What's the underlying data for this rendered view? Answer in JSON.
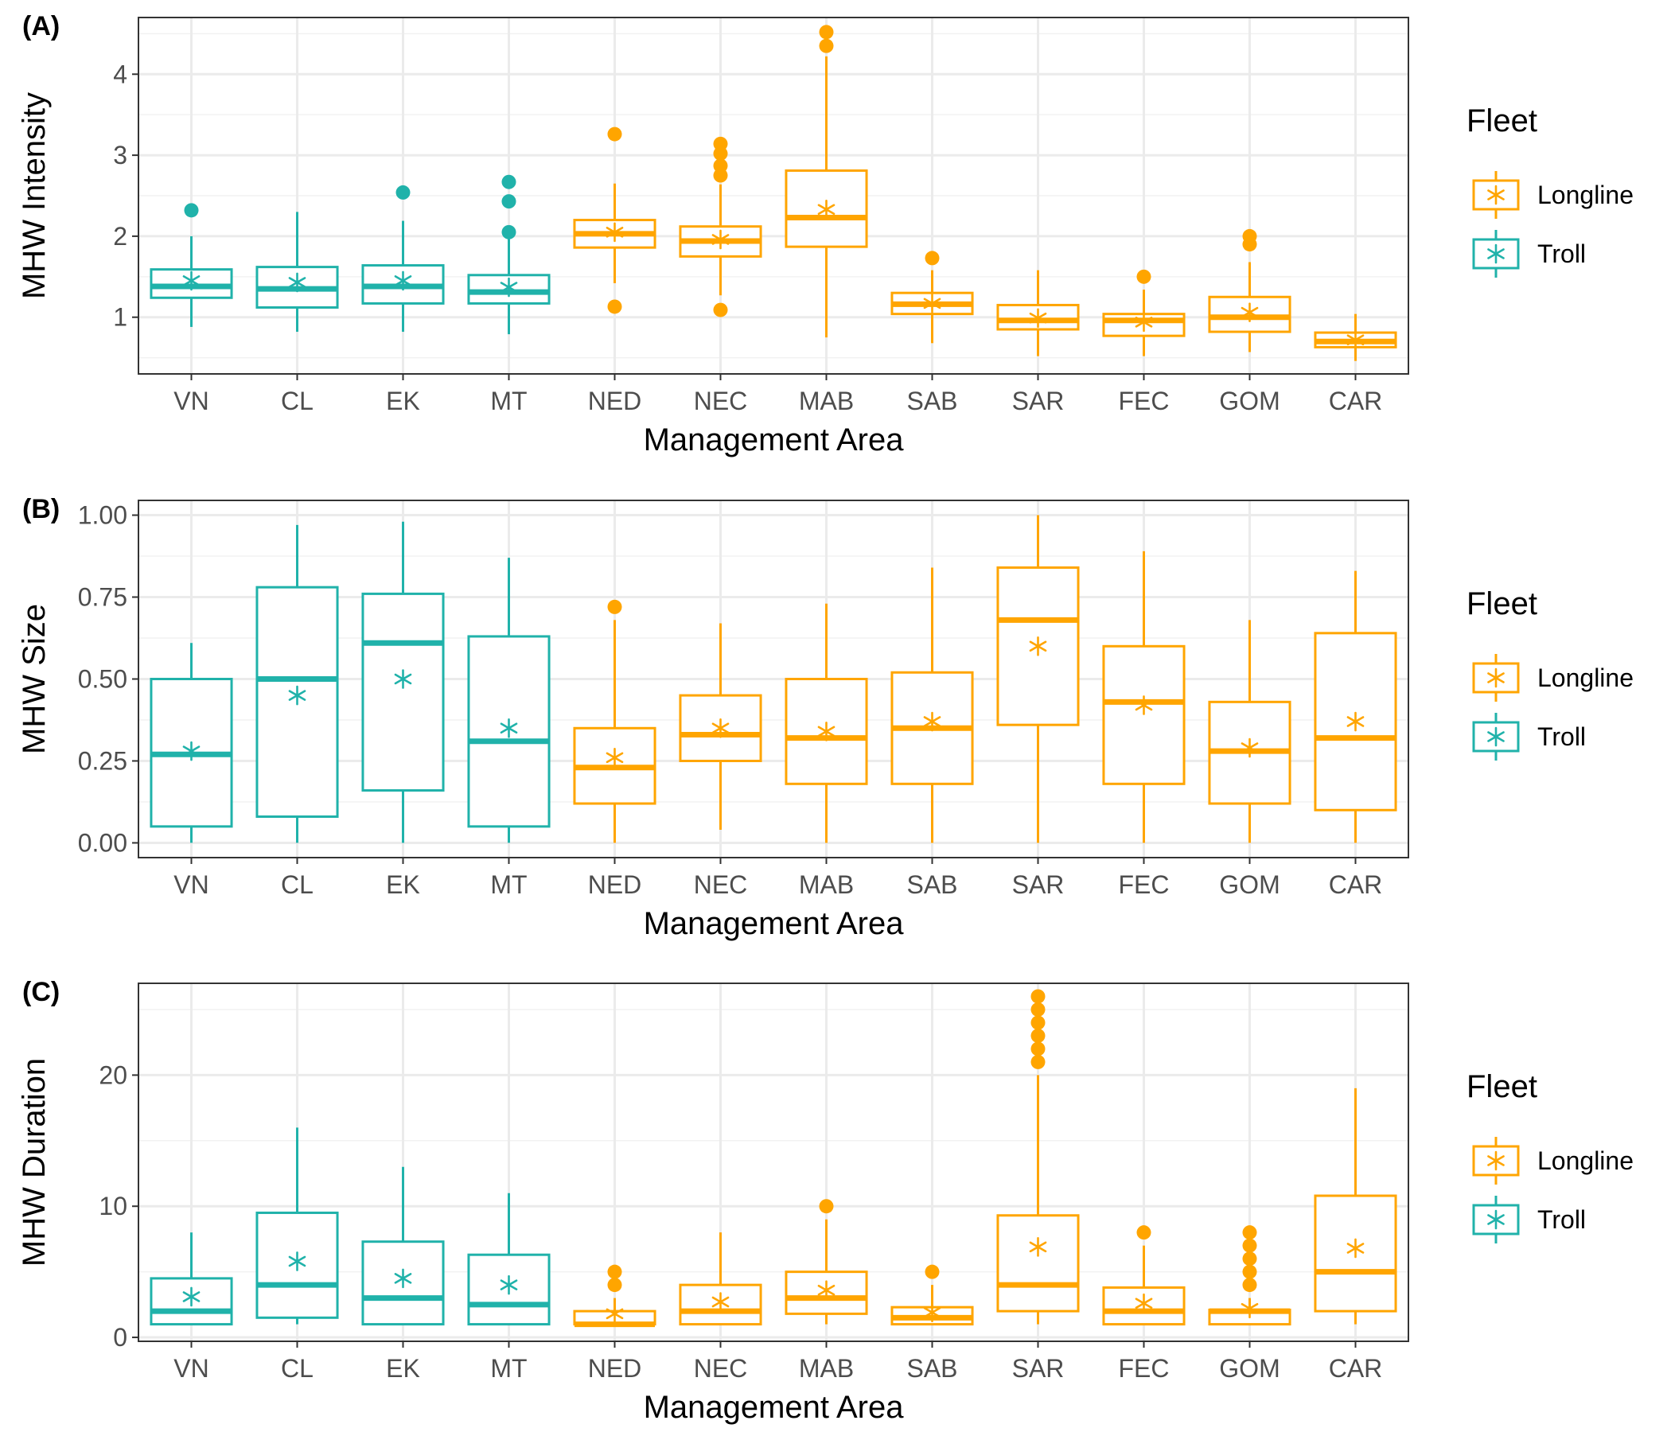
{
  "legend": {
    "title": "Fleet",
    "entries": [
      {
        "label": "Longline",
        "color": "#FFA500"
      },
      {
        "label": "Troll",
        "color": "#20B2AA"
      }
    ]
  },
  "colors": {
    "Longline": "#FFA500",
    "Troll": "#20B2AA",
    "grid_major": "#ebebeb",
    "panel_border": "#333333"
  },
  "chart_data": [
    {
      "panel": "(A)",
      "type": "boxplot",
      "xlabel": "Management Area",
      "ylabel": "MHW Intensity",
      "ylim": [
        0.3,
        4.7
      ],
      "yticks": [
        1,
        2,
        3,
        4
      ],
      "ytick_labels": [
        "1",
        "2",
        "3",
        "4"
      ],
      "grid": true,
      "legend_position": "right",
      "groups": [
        {
          "area": "VN",
          "fleet": "Troll",
          "whisker_low": 0.88,
          "q1": 1.24,
          "median": 1.38,
          "q3": 1.59,
          "whisker_high": 2.0,
          "mean": 1.45,
          "outliers": [
            2.32
          ]
        },
        {
          "area": "CL",
          "fleet": "Troll",
          "whisker_low": 0.82,
          "q1": 1.12,
          "median": 1.35,
          "q3": 1.62,
          "whisker_high": 2.3,
          "mean": 1.43,
          "outliers": []
        },
        {
          "area": "EK",
          "fleet": "Troll",
          "whisker_low": 0.82,
          "q1": 1.17,
          "median": 1.38,
          "q3": 1.64,
          "whisker_high": 2.19,
          "mean": 1.45,
          "outliers": [
            2.54
          ]
        },
        {
          "area": "MT",
          "fleet": "Troll",
          "whisker_low": 0.79,
          "q1": 1.17,
          "median": 1.31,
          "q3": 1.52,
          "whisker_high": 1.99,
          "mean": 1.37,
          "outliers": [
            2.05,
            2.43,
            2.67
          ]
        },
        {
          "area": "NED",
          "fleet": "Longline",
          "whisker_low": 1.42,
          "q1": 1.86,
          "median": 2.03,
          "q3": 2.2,
          "whisker_high": 2.65,
          "mean": 2.05,
          "outliers": [
            1.13,
            3.26
          ]
        },
        {
          "area": "NEC",
          "fleet": "Longline",
          "whisker_low": 1.27,
          "q1": 1.75,
          "median": 1.94,
          "q3": 2.12,
          "whisker_high": 2.64,
          "mean": 1.96,
          "outliers": [
            1.09,
            2.75,
            2.87,
            3.02,
            3.14
          ]
        },
        {
          "area": "MAB",
          "fleet": "Longline",
          "whisker_low": 0.75,
          "q1": 1.87,
          "median": 2.23,
          "q3": 2.81,
          "whisker_high": 4.22,
          "mean": 2.33,
          "outliers": [
            4.35,
            4.52
          ]
        },
        {
          "area": "SAB",
          "fleet": "Longline",
          "whisker_low": 0.68,
          "q1": 1.04,
          "median": 1.16,
          "q3": 1.3,
          "whisker_high": 1.58,
          "mean": 1.17,
          "outliers": [
            1.73
          ]
        },
        {
          "area": "SAR",
          "fleet": "Longline",
          "whisker_low": 0.52,
          "q1": 0.85,
          "median": 0.96,
          "q3": 1.15,
          "whisker_high": 1.58,
          "mean": 0.99,
          "outliers": []
        },
        {
          "area": "FEC",
          "fleet": "Longline",
          "whisker_low": 0.52,
          "q1": 0.77,
          "median": 0.96,
          "q3": 1.04,
          "whisker_high": 1.34,
          "mean": 0.94,
          "outliers": [
            1.5
          ]
        },
        {
          "area": "GOM",
          "fleet": "Longline",
          "whisker_low": 0.57,
          "q1": 0.82,
          "median": 1.0,
          "q3": 1.25,
          "whisker_high": 1.68,
          "mean": 1.06,
          "outliers": [
            1.9,
            2.0
          ]
        },
        {
          "area": "CAR",
          "fleet": "Longline",
          "whisker_low": 0.46,
          "q1": 0.63,
          "median": 0.7,
          "q3": 0.81,
          "whisker_high": 1.04,
          "mean": 0.72,
          "outliers": []
        }
      ]
    },
    {
      "panel": "(B)",
      "type": "boxplot",
      "xlabel": "Management Area",
      "ylabel": "MHW Size",
      "ylim": [
        -0.045,
        1.045
      ],
      "yticks": [
        0,
        0.25,
        0.5,
        0.75,
        1.0
      ],
      "ytick_labels": [
        "0.00",
        "0.25",
        "0.50",
        "0.75",
        "1.00"
      ],
      "grid": true,
      "legend_position": "right",
      "groups": [
        {
          "area": "VN",
          "fleet": "Troll",
          "whisker_low": 0.0,
          "q1": 0.05,
          "median": 0.27,
          "q3": 0.5,
          "whisker_high": 0.61,
          "mean": 0.28,
          "outliers": []
        },
        {
          "area": "CL",
          "fleet": "Troll",
          "whisker_low": 0.0,
          "q1": 0.08,
          "median": 0.5,
          "q3": 0.78,
          "whisker_high": 0.97,
          "mean": 0.45,
          "outliers": []
        },
        {
          "area": "EK",
          "fleet": "Troll",
          "whisker_low": 0.0,
          "q1": 0.16,
          "median": 0.61,
          "q3": 0.76,
          "whisker_high": 0.98,
          "mean": 0.5,
          "outliers": []
        },
        {
          "area": "MT",
          "fleet": "Troll",
          "whisker_low": 0.0,
          "q1": 0.05,
          "median": 0.31,
          "q3": 0.63,
          "whisker_high": 0.87,
          "mean": 0.35,
          "outliers": []
        },
        {
          "area": "NED",
          "fleet": "Longline",
          "whisker_low": 0.0,
          "q1": 0.12,
          "median": 0.23,
          "q3": 0.35,
          "whisker_high": 0.68,
          "mean": 0.26,
          "outliers": [
            0.72
          ]
        },
        {
          "area": "NEC",
          "fleet": "Longline",
          "whisker_low": 0.04,
          "q1": 0.25,
          "median": 0.33,
          "q3": 0.45,
          "whisker_high": 0.67,
          "mean": 0.35,
          "outliers": []
        },
        {
          "area": "MAB",
          "fleet": "Longline",
          "whisker_low": 0.0,
          "q1": 0.18,
          "median": 0.32,
          "q3": 0.5,
          "whisker_high": 0.73,
          "mean": 0.34,
          "outliers": []
        },
        {
          "area": "SAB",
          "fleet": "Longline",
          "whisker_low": 0.0,
          "q1": 0.18,
          "median": 0.35,
          "q3": 0.52,
          "whisker_high": 0.84,
          "mean": 0.37,
          "outliers": []
        },
        {
          "area": "SAR",
          "fleet": "Longline",
          "whisker_low": 0.0,
          "q1": 0.36,
          "median": 0.68,
          "q3": 0.84,
          "whisker_high": 1.0,
          "mean": 0.6,
          "outliers": []
        },
        {
          "area": "FEC",
          "fleet": "Longline",
          "whisker_low": 0.0,
          "q1": 0.18,
          "median": 0.43,
          "q3": 0.6,
          "whisker_high": 0.89,
          "mean": 0.42,
          "outliers": []
        },
        {
          "area": "GOM",
          "fleet": "Longline",
          "whisker_low": 0.0,
          "q1": 0.12,
          "median": 0.28,
          "q3": 0.43,
          "whisker_high": 0.68,
          "mean": 0.29,
          "outliers": []
        },
        {
          "area": "CAR",
          "fleet": "Longline",
          "whisker_low": 0.0,
          "q1": 0.1,
          "median": 0.32,
          "q3": 0.64,
          "whisker_high": 0.83,
          "mean": 0.37,
          "outliers": []
        }
      ]
    },
    {
      "panel": "(C)",
      "type": "boxplot",
      "xlabel": "Management Area",
      "ylabel": "MHW Duration",
      "ylim": [
        -0.3,
        27
      ],
      "yticks": [
        0,
        10,
        20
      ],
      "ytick_labels": [
        "0",
        "10",
        "20"
      ],
      "grid": true,
      "legend_position": "right",
      "groups": [
        {
          "area": "VN",
          "fleet": "Troll",
          "whisker_low": 1,
          "q1": 1,
          "median": 2,
          "q3": 4.5,
          "whisker_high": 8,
          "mean": 3.1,
          "outliers": []
        },
        {
          "area": "CL",
          "fleet": "Troll",
          "whisker_low": 1,
          "q1": 1.5,
          "median": 4,
          "q3": 9.5,
          "whisker_high": 16,
          "mean": 5.8,
          "outliers": []
        },
        {
          "area": "EK",
          "fleet": "Troll",
          "whisker_low": 1,
          "q1": 1,
          "median": 3,
          "q3": 7.3,
          "whisker_high": 13,
          "mean": 4.5,
          "outliers": []
        },
        {
          "area": "MT",
          "fleet": "Troll",
          "whisker_low": 1,
          "q1": 1,
          "median": 2.5,
          "q3": 6.3,
          "whisker_high": 11,
          "mean": 4.0,
          "outliers": []
        },
        {
          "area": "NED",
          "fleet": "Longline",
          "whisker_low": 1,
          "q1": 1,
          "median": 1,
          "q3": 2,
          "whisker_high": 3,
          "mean": 1.8,
          "outliers": [
            4,
            5
          ]
        },
        {
          "area": "NEC",
          "fleet": "Longline",
          "whisker_low": 1,
          "q1": 1,
          "median": 2,
          "q3": 4,
          "whisker_high": 8,
          "mean": 2.7,
          "outliers": []
        },
        {
          "area": "MAB",
          "fleet": "Longline",
          "whisker_low": 1,
          "q1": 1.8,
          "median": 3,
          "q3": 5,
          "whisker_high": 9,
          "mean": 3.6,
          "outliers": [
            10
          ]
        },
        {
          "area": "SAB",
          "fleet": "Longline",
          "whisker_low": 1,
          "q1": 1,
          "median": 1.5,
          "q3": 2.3,
          "whisker_high": 4,
          "mean": 1.9,
          "outliers": [
            5
          ]
        },
        {
          "area": "SAR",
          "fleet": "Longline",
          "whisker_low": 1,
          "q1": 2,
          "median": 4,
          "q3": 9.3,
          "whisker_high": 20,
          "mean": 6.9,
          "outliers": [
            21,
            22,
            23,
            24,
            25,
            26
          ]
        },
        {
          "area": "FEC",
          "fleet": "Longline",
          "whisker_low": 1,
          "q1": 1,
          "median": 2,
          "q3": 3.8,
          "whisker_high": 7,
          "mean": 2.6,
          "outliers": [
            8
          ]
        },
        {
          "area": "GOM",
          "fleet": "Longline",
          "whisker_low": 1,
          "q1": 1,
          "median": 2,
          "q3": 2.1,
          "whisker_high": 3,
          "mean": 2.2,
          "outliers": [
            4,
            5,
            6,
            7,
            8
          ]
        },
        {
          "area": "CAR",
          "fleet": "Longline",
          "whisker_low": 1,
          "q1": 2,
          "median": 5,
          "q3": 10.8,
          "whisker_high": 19,
          "mean": 6.8,
          "outliers": []
        }
      ]
    }
  ]
}
